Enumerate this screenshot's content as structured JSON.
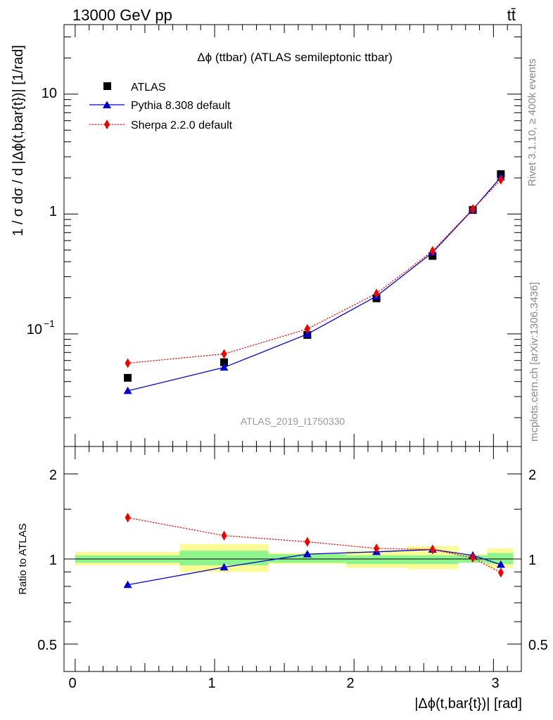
{
  "header": {
    "energy_label": "13000 GeV pp",
    "process_label": "tt̄",
    "plot_title": "Δϕ (ttbar) (ATLAS semileptonic ttbar)",
    "analysis_id": "ATLAS_2019_I1750330",
    "rivet_label": "Rivet 3.1.10, ≥ 400k events",
    "mcplots_label": "mcplots.cern.ch [arXiv:1306.3436]"
  },
  "axes": {
    "main_ylabel": "1 / σ dσ / d |Δϕ(t,bar{t})| [1/rad]",
    "ratio_ylabel": "Ratio to ATLAS",
    "xlabel": "|Δϕ(t,bar{t})| [rad]",
    "x_ticks": [
      "0",
      "1",
      "2",
      "3"
    ],
    "main_y_ticks": [
      "10",
      "1",
      "10",
      "−1"
    ],
    "ratio_y_ticks": [
      "2",
      "1",
      "0.5"
    ]
  },
  "legend": {
    "entries": [
      "ATLAS",
      "Pythia 8.308 default",
      "Sherpa 2.2.0 default"
    ]
  },
  "colors": {
    "data": "#000000",
    "pythia": "#0000cc",
    "sherpa": "#ee0000",
    "band_inner": "#8ef58e",
    "band_outer": "#fbfb96",
    "label_gray": "#999999"
  },
  "chart_data": [
    {
      "type": "scatter",
      "title": "Δϕ (ttbar) (ATLAS semileptonic ttbar)",
      "xlabel": "|Δϕ(t,bar{t})| [rad]",
      "ylabel": "1 / σ dσ / d |Δϕ(t,bar{t})| [1/rad]",
      "yscale": "log",
      "xlim": [
        -0.08,
        3.2
      ],
      "ylim": [
        0.0115,
        38
      ],
      "legend_position": "top-left",
      "x": [
        0.377,
        1.068,
        1.665,
        2.161,
        2.563,
        2.852,
        3.053
      ],
      "series": [
        {
          "name": "ATLAS",
          "values": [
            0.043,
            0.058,
            0.098,
            0.198,
            0.447,
            1.08,
            2.15
          ]
        },
        {
          "name": "Pythia 8.308 default",
          "values": [
            0.0335,
            0.0525,
            0.0995,
            0.206,
            0.478,
            1.09,
            2.03
          ]
        },
        {
          "name": "Sherpa 2.2.0 default",
          "values": [
            0.057,
            0.068,
            0.11,
            0.217,
            0.492,
            1.1,
            1.93
          ]
        }
      ]
    },
    {
      "type": "line",
      "title": "",
      "xlabel": "|Δϕ(t,bar{t})| [rad]",
      "ylabel": "Ratio to ATLAS",
      "yscale": "log",
      "xlim": [
        -0.08,
        3.2
      ],
      "ylim": [
        0.4,
        2.5
      ],
      "y_ticks": [
        0.5,
        1,
        2
      ],
      "x": [
        0.377,
        1.068,
        1.665,
        2.161,
        2.563,
        2.852,
        3.053
      ],
      "bin_edges": [
        0,
        0.75,
        1.385,
        1.945,
        2.377,
        2.749,
        2.955,
        3.1416
      ],
      "uncertainty_bands": {
        "inner": [
          [
            0.97,
            1.03
          ],
          [
            0.95,
            1.07
          ],
          [
            0.97,
            1.04
          ],
          [
            0.96,
            1.03
          ],
          [
            0.96,
            1.03
          ],
          [
            0.97,
            1.03
          ],
          [
            0.96,
            1.05
          ]
        ],
        "outer": [
          [
            0.95,
            1.06
          ],
          [
            0.9,
            1.13
          ],
          [
            0.96,
            1.05
          ],
          [
            0.93,
            1.07
          ],
          [
            0.92,
            1.11
          ],
          [
            0.97,
            1.04
          ],
          [
            0.93,
            1.09
          ]
        ]
      },
      "series": [
        {
          "name": "Pythia 8.308 default",
          "values": [
            0.81,
            0.935,
            1.04,
            1.06,
            1.08,
            1.03,
            0.955
          ]
        },
        {
          "name": "Sherpa 2.2.0 default",
          "values": [
            1.4,
            1.21,
            1.15,
            1.09,
            1.08,
            1.01,
            0.895
          ]
        }
      ]
    }
  ]
}
